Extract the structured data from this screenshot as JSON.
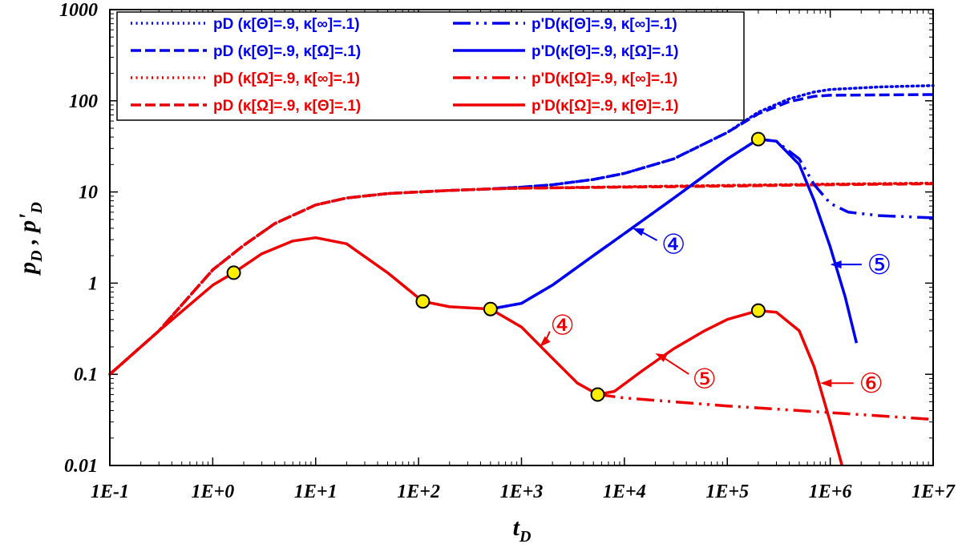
{
  "chart_data": {
    "type": "line",
    "x_scale": "log",
    "y_scale": "log",
    "xlim": [
      0.1,
      10000000
    ],
    "ylim": [
      0.01,
      1000
    ],
    "xlabel": "tD",
    "ylabel": "pD , p'D",
    "x_ticks": [
      "1E-1",
      "1E+0",
      "1E+1",
      "1E+2",
      "1E+3",
      "1E+4",
      "1E+5",
      "1E+6",
      "1E+7"
    ],
    "y_ticks": [
      "0.01",
      "0.1",
      "1",
      "10",
      "100",
      "1000"
    ],
    "grid": false,
    "legend_position": "top-left",
    "legend_columns": [
      [
        "pD (κ[Θ]=.9, κ[∞]=.1)",
        "pD (κ[Θ]=.9, κ[Ω]=.1)",
        "pD (κ[Ω]=.9, κ[∞]=.1)",
        "pD (κ[Ω]=.9, κ[Θ]=.1)"
      ],
      [
        "p'D(κ[Θ]=.9, κ[∞]=.1)",
        "p'D(κ[Θ]=.9, κ[Ω]=.1)",
        "p'D(κ[Ω]=.9, κ[∞]=.1)",
        "p'D(κ[Ω]=.9, κ[Θ]=.1)"
      ]
    ],
    "series": [
      {
        "name": "pD (κ[Θ]=.9, κ[∞]=.1)",
        "color": "#0000ee",
        "style": "dotted",
        "x": [
          0.1,
          0.3,
          1,
          2,
          4,
          10,
          20,
          50,
          100,
          200,
          500,
          1000,
          2000,
          5000,
          10000,
          30000,
          100000,
          200000,
          400000,
          700000,
          1000000,
          3000000,
          10000000
        ],
        "y": [
          0.1,
          0.3,
          1.4,
          2.6,
          4.5,
          7.2,
          8.6,
          9.6,
          10.0,
          10.4,
          10.8,
          11.3,
          12.0,
          13.7,
          16.0,
          23,
          45,
          75,
          105,
          125,
          133,
          142,
          147
        ]
      },
      {
        "name": "pD (κ[Θ]=.9, κ[Ω]=.1)",
        "color": "#0000ee",
        "style": "dashed",
        "x": [
          0.1,
          0.3,
          1,
          2,
          4,
          10,
          20,
          50,
          100,
          200,
          500,
          1000,
          2000,
          5000,
          10000,
          30000,
          100000,
          200000,
          400000,
          700000,
          1000000,
          3000000,
          10000000
        ],
        "y": [
          0.1,
          0.3,
          1.4,
          2.6,
          4.5,
          7.2,
          8.6,
          9.6,
          10.0,
          10.4,
          10.8,
          11.3,
          12.0,
          13.7,
          16.0,
          23,
          45,
          72,
          98,
          112,
          115,
          116,
          117
        ]
      },
      {
        "name": "pD (κ[Ω]=.9, κ[∞]=.1)",
        "color": "#ee0000",
        "style": "dotted",
        "x": [
          0.1,
          0.3,
          1,
          2,
          4,
          10,
          20,
          50,
          100,
          200,
          500,
          1000,
          10000,
          100000,
          1000000,
          10000000
        ],
        "y": [
          0.1,
          0.3,
          1.4,
          2.6,
          4.5,
          7.2,
          8.6,
          9.6,
          10.0,
          10.4,
          10.8,
          11.0,
          11.4,
          11.8,
          12.2,
          12.5
        ]
      },
      {
        "name": "pD (κ[Ω]=.9, κ[Θ]=.1)",
        "color": "#ee0000",
        "style": "dashed",
        "x": [
          0.1,
          0.3,
          1,
          2,
          4,
          10,
          20,
          50,
          100,
          200,
          500,
          1000,
          10000,
          100000,
          1000000,
          10000000
        ],
        "y": [
          0.1,
          0.3,
          1.4,
          2.6,
          4.5,
          7.2,
          8.6,
          9.6,
          10.0,
          10.4,
          10.8,
          11.0,
          11.3,
          11.6,
          12.0,
          12.3
        ]
      },
      {
        "name": "p'D(κ[Θ]=.9, κ[∞]=.1)",
        "color": "#0000ee",
        "style": "dashdotdot",
        "x": [
          500,
          1000,
          2000,
          5000,
          10000,
          30000,
          100000,
          200000,
          300000,
          500000,
          700000,
          1000000,
          1500000,
          3000000,
          10000000
        ],
        "y": [
          0.52,
          0.6,
          0.95,
          2.0,
          3.5,
          8.5,
          23,
          38,
          36,
          23,
          12,
          7.5,
          6.0,
          5.5,
          5.2
        ]
      },
      {
        "name": "p'D(κ[Θ]=.9, κ[Ω]=.1)",
        "color": "#0000ee",
        "style": "solid",
        "x": [
          500,
          1000,
          2000,
          5000,
          10000,
          30000,
          100000,
          200000,
          300000,
          500000,
          700000,
          1000000,
          1400000,
          1800000
        ],
        "y": [
          0.52,
          0.6,
          0.95,
          2.0,
          3.5,
          8.5,
          23,
          38,
          36,
          20,
          8,
          2.5,
          0.7,
          0.22
        ]
      },
      {
        "name": "p'D(κ[Ω]=.9, κ[∞]=.1)",
        "color": "#ee0000",
        "style": "dashdotdot",
        "x": [
          5500,
          10000,
          100000,
          1000000,
          10000000
        ],
        "y": [
          0.06,
          0.055,
          0.045,
          0.038,
          0.032
        ]
      },
      {
        "name": "p'D(κ[Ω]=.9, κ[Θ]=.1)",
        "color": "#ee0000",
        "style": "solid",
        "x": [
          0.1,
          0.3,
          1,
          1.6,
          3,
          6,
          10,
          20,
          50,
          110,
          200,
          500,
          1000,
          2000,
          3500,
          5500,
          8000,
          15000,
          30000,
          60000,
          100000,
          200000,
          300000,
          500000,
          700000,
          1000000,
          1200000,
          1300000
        ],
        "y": [
          0.1,
          0.3,
          0.95,
          1.3,
          2.1,
          2.9,
          3.15,
          2.7,
          1.3,
          0.63,
          0.55,
          0.52,
          0.33,
          0.15,
          0.08,
          0.06,
          0.065,
          0.11,
          0.19,
          0.3,
          0.4,
          0.5,
          0.48,
          0.3,
          0.12,
          0.03,
          0.014,
          0.01
        ]
      }
    ],
    "markers": {
      "color": "#ffee00",
      "points": [
        [
          1.6,
          1.3
        ],
        [
          110,
          0.63
        ],
        [
          500,
          0.52
        ],
        [
          5500,
          0.06
        ],
        [
          200000,
          38
        ],
        [
          200000,
          0.5
        ]
      ]
    },
    "annotations": [
      {
        "text": "④",
        "color": "#0000ee",
        "arrow_to": [
          12000,
          4.0
        ],
        "label_at": [
          30000,
          2.7
        ]
      },
      {
        "text": "⑤",
        "color": "#0000ee",
        "arrow_to": [
          1000000,
          1.6
        ],
        "label_at": [
          3000000,
          1.6
        ]
      },
      {
        "text": "④",
        "color": "#ee0000",
        "arrow_to": [
          1500,
          0.2
        ],
        "label_at": [
          2500,
          0.35
        ]
      },
      {
        "text": "⑤",
        "color": "#ee0000",
        "arrow_to": [
          20000,
          0.17
        ],
        "label_at": [
          60000,
          0.09
        ]
      },
      {
        "text": "⑥",
        "color": "#ee0000",
        "arrow_to": [
          800000,
          0.08
        ],
        "label_at": [
          2500000,
          0.08
        ]
      }
    ]
  }
}
